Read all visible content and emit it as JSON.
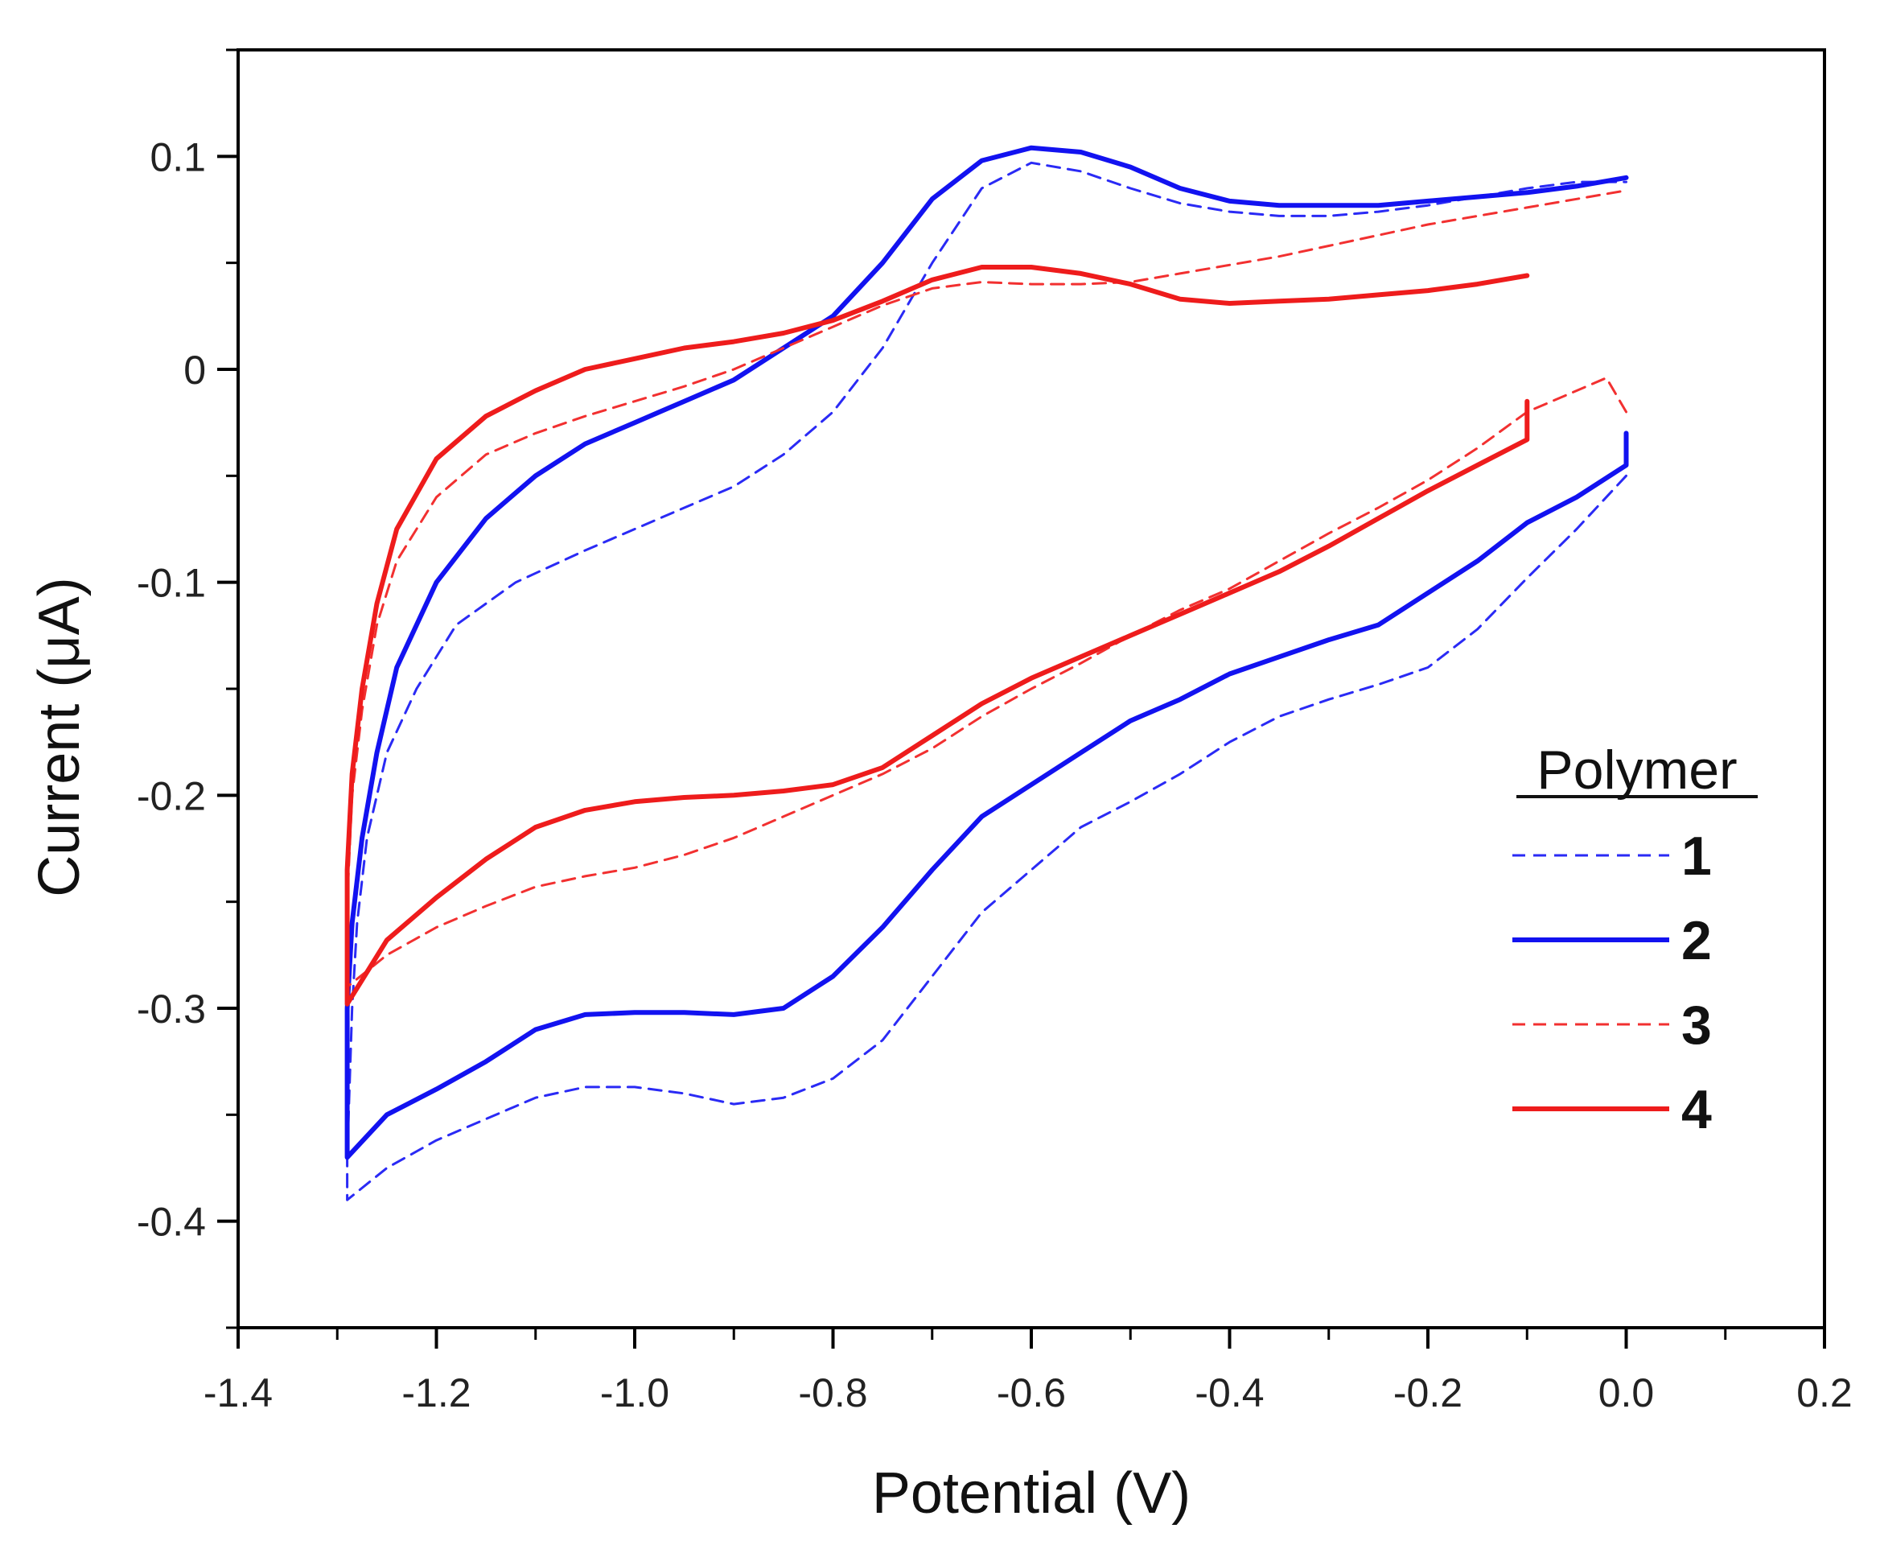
{
  "chart_data": {
    "type": "line",
    "title": "",
    "xlabel": "Potential (V)",
    "ylabel": "Current (μA)",
    "xlim": [
      -1.4,
      0.2
    ],
    "ylim": [
      -0.45,
      0.15
    ],
    "xticks": [
      {
        "value": -1.4,
        "label": "-1.4"
      },
      {
        "value": -1.2,
        "label": "-1.2"
      },
      {
        "value": -1.0,
        "label": "-1.0"
      },
      {
        "value": -0.8,
        "label": "-0.8"
      },
      {
        "value": -0.6,
        "label": "-0.6"
      },
      {
        "value": -0.4,
        "label": "-0.4"
      },
      {
        "value": -0.2,
        "label": "-0.2"
      },
      {
        "value": 0.0,
        "label": "0.0"
      },
      {
        "value": 0.2,
        "label": "0.2"
      }
    ],
    "yticks": [
      {
        "value": 0.1,
        "label": "0.1"
      },
      {
        "value": 0.0,
        "label": "0"
      },
      {
        "value": -0.1,
        "label": "-0.1"
      },
      {
        "value": -0.2,
        "label": "-0.2"
      },
      {
        "value": -0.3,
        "label": "-0.3"
      },
      {
        "value": -0.4,
        "label": "-0.4"
      }
    ],
    "legend": {
      "title": "Polymer",
      "position": "right"
    },
    "series": [
      {
        "name": "1",
        "color": "#2a2af5",
        "style": "dashed",
        "points": [
          [
            0.0,
            -0.05
          ],
          [
            -0.05,
            -0.075
          ],
          [
            -0.1,
            -0.098
          ],
          [
            -0.15,
            -0.122
          ],
          [
            -0.2,
            -0.14
          ],
          [
            -0.25,
            -0.148
          ],
          [
            -0.3,
            -0.155
          ],
          [
            -0.35,
            -0.163
          ],
          [
            -0.4,
            -0.175
          ],
          [
            -0.45,
            -0.19
          ],
          [
            -0.5,
            -0.203
          ],
          [
            -0.55,
            -0.215
          ],
          [
            -0.6,
            -0.235
          ],
          [
            -0.65,
            -0.255
          ],
          [
            -0.7,
            -0.285
          ],
          [
            -0.75,
            -0.315
          ],
          [
            -0.8,
            -0.333
          ],
          [
            -0.85,
            -0.342
          ],
          [
            -0.9,
            -0.345
          ],
          [
            -0.95,
            -0.34
          ],
          [
            -1.0,
            -0.337
          ],
          [
            -1.05,
            -0.337
          ],
          [
            -1.1,
            -0.342
          ],
          [
            -1.15,
            -0.352
          ],
          [
            -1.2,
            -0.362
          ],
          [
            -1.25,
            -0.375
          ],
          [
            -1.29,
            -0.39
          ],
          [
            -1.29,
            -0.37
          ],
          [
            -1.285,
            -0.3
          ],
          [
            -1.28,
            -0.26
          ],
          [
            -1.27,
            -0.22
          ],
          [
            -1.25,
            -0.18
          ],
          [
            -1.22,
            -0.15
          ],
          [
            -1.18,
            -0.12
          ],
          [
            -1.12,
            -0.1
          ],
          [
            -1.05,
            -0.085
          ],
          [
            -1.0,
            -0.075
          ],
          [
            -0.95,
            -0.065
          ],
          [
            -0.9,
            -0.055
          ],
          [
            -0.85,
            -0.04
          ],
          [
            -0.8,
            -0.02
          ],
          [
            -0.75,
            0.01
          ],
          [
            -0.7,
            0.05
          ],
          [
            -0.65,
            0.085
          ],
          [
            -0.6,
            0.097
          ],
          [
            -0.55,
            0.093
          ],
          [
            -0.5,
            0.085
          ],
          [
            -0.45,
            0.078
          ],
          [
            -0.4,
            0.074
          ],
          [
            -0.35,
            0.072
          ],
          [
            -0.3,
            0.072
          ],
          [
            -0.25,
            0.074
          ],
          [
            -0.2,
            0.077
          ],
          [
            -0.15,
            0.081
          ],
          [
            -0.1,
            0.085
          ],
          [
            -0.05,
            0.088
          ],
          [
            0.0,
            0.088
          ]
        ]
      },
      {
        "name": "2",
        "color": "#1212f0",
        "style": "solid",
        "points": [
          [
            0.0,
            -0.03
          ],
          [
            0.0,
            -0.045
          ],
          [
            -0.05,
            -0.06
          ],
          [
            -0.1,
            -0.072
          ],
          [
            -0.15,
            -0.09
          ],
          [
            -0.2,
            -0.105
          ],
          [
            -0.25,
            -0.12
          ],
          [
            -0.3,
            -0.127
          ],
          [
            -0.35,
            -0.135
          ],
          [
            -0.4,
            -0.143
          ],
          [
            -0.45,
            -0.155
          ],
          [
            -0.5,
            -0.165
          ],
          [
            -0.55,
            -0.18
          ],
          [
            -0.6,
            -0.195
          ],
          [
            -0.65,
            -0.21
          ],
          [
            -0.7,
            -0.235
          ],
          [
            -0.75,
            -0.262
          ],
          [
            -0.8,
            -0.285
          ],
          [
            -0.85,
            -0.3
          ],
          [
            -0.9,
            -0.303
          ],
          [
            -0.95,
            -0.302
          ],
          [
            -1.0,
            -0.302
          ],
          [
            -1.05,
            -0.303
          ],
          [
            -1.1,
            -0.31
          ],
          [
            -1.15,
            -0.325
          ],
          [
            -1.2,
            -0.338
          ],
          [
            -1.25,
            -0.35
          ],
          [
            -1.29,
            -0.37
          ],
          [
            -1.29,
            -0.3
          ],
          [
            -1.285,
            -0.26
          ],
          [
            -1.275,
            -0.22
          ],
          [
            -1.26,
            -0.18
          ],
          [
            -1.24,
            -0.14
          ],
          [
            -1.2,
            -0.1
          ],
          [
            -1.15,
            -0.07
          ],
          [
            -1.1,
            -0.05
          ],
          [
            -1.05,
            -0.035
          ],
          [
            -1.0,
            -0.025
          ],
          [
            -0.95,
            -0.015
          ],
          [
            -0.9,
            -0.005
          ],
          [
            -0.85,
            0.01
          ],
          [
            -0.8,
            0.025
          ],
          [
            -0.75,
            0.05
          ],
          [
            -0.7,
            0.08
          ],
          [
            -0.65,
            0.098
          ],
          [
            -0.6,
            0.104
          ],
          [
            -0.55,
            0.102
          ],
          [
            -0.5,
            0.095
          ],
          [
            -0.45,
            0.085
          ],
          [
            -0.4,
            0.079
          ],
          [
            -0.35,
            0.077
          ],
          [
            -0.3,
            0.077
          ],
          [
            -0.25,
            0.077
          ],
          [
            -0.2,
            0.079
          ],
          [
            -0.15,
            0.081
          ],
          [
            -0.1,
            0.083
          ],
          [
            -0.05,
            0.086
          ],
          [
            0.0,
            0.09
          ]
        ]
      },
      {
        "name": "3",
        "color": "#f23030",
        "style": "dashed",
        "points": [
          [
            0.0,
            -0.02
          ],
          [
            -0.02,
            -0.004
          ],
          [
            -0.05,
            -0.01
          ],
          [
            -0.1,
            -0.02
          ],
          [
            -0.15,
            -0.037
          ],
          [
            -0.2,
            -0.052
          ],
          [
            -0.25,
            -0.065
          ],
          [
            -0.3,
            -0.077
          ],
          [
            -0.35,
            -0.09
          ],
          [
            -0.4,
            -0.103
          ],
          [
            -0.45,
            -0.113
          ],
          [
            -0.5,
            -0.125
          ],
          [
            -0.55,
            -0.138
          ],
          [
            -0.6,
            -0.15
          ],
          [
            -0.65,
            -0.163
          ],
          [
            -0.7,
            -0.178
          ],
          [
            -0.75,
            -0.19
          ],
          [
            -0.8,
            -0.2
          ],
          [
            -0.85,
            -0.21
          ],
          [
            -0.9,
            -0.22
          ],
          [
            -0.95,
            -0.228
          ],
          [
            -1.0,
            -0.234
          ],
          [
            -1.05,
            -0.238
          ],
          [
            -1.1,
            -0.243
          ],
          [
            -1.15,
            -0.252
          ],
          [
            -1.2,
            -0.262
          ],
          [
            -1.25,
            -0.275
          ],
          [
            -1.29,
            -0.29
          ],
          [
            -1.29,
            -0.25
          ],
          [
            -1.285,
            -0.2
          ],
          [
            -1.275,
            -0.16
          ],
          [
            -1.26,
            -0.12
          ],
          [
            -1.24,
            -0.09
          ],
          [
            -1.2,
            -0.06
          ],
          [
            -1.15,
            -0.04
          ],
          [
            -1.1,
            -0.03
          ],
          [
            -1.05,
            -0.022
          ],
          [
            -1.0,
            -0.015
          ],
          [
            -0.95,
            -0.008
          ],
          [
            -0.9,
            0.0
          ],
          [
            -0.85,
            0.01
          ],
          [
            -0.8,
            0.02
          ],
          [
            -0.75,
            0.03
          ],
          [
            -0.7,
            0.038
          ],
          [
            -0.65,
            0.041
          ],
          [
            -0.6,
            0.04
          ],
          [
            -0.55,
            0.04
          ],
          [
            -0.5,
            0.041
          ],
          [
            -0.45,
            0.045
          ],
          [
            -0.4,
            0.049
          ],
          [
            -0.35,
            0.053
          ],
          [
            -0.3,
            0.058
          ],
          [
            -0.25,
            0.063
          ],
          [
            -0.2,
            0.068
          ],
          [
            -0.15,
            0.072
          ],
          [
            -0.1,
            0.076
          ],
          [
            -0.05,
            0.08
          ],
          [
            0.0,
            0.084
          ]
        ]
      },
      {
        "name": "4",
        "color": "#ee1c1c",
        "style": "solid",
        "points": [
          [
            -0.1,
            -0.015
          ],
          [
            -0.1,
            -0.033
          ],
          [
            -0.15,
            -0.045
          ],
          [
            -0.2,
            -0.057
          ],
          [
            -0.25,
            -0.07
          ],
          [
            -0.3,
            -0.083
          ],
          [
            -0.35,
            -0.095
          ],
          [
            -0.4,
            -0.105
          ],
          [
            -0.45,
            -0.115
          ],
          [
            -0.5,
            -0.125
          ],
          [
            -0.55,
            -0.135
          ],
          [
            -0.6,
            -0.145
          ],
          [
            -0.65,
            -0.157
          ],
          [
            -0.7,
            -0.172
          ],
          [
            -0.75,
            -0.187
          ],
          [
            -0.8,
            -0.195
          ],
          [
            -0.85,
            -0.198
          ],
          [
            -0.9,
            -0.2
          ],
          [
            -0.95,
            -0.201
          ],
          [
            -1.0,
            -0.203
          ],
          [
            -1.05,
            -0.207
          ],
          [
            -1.1,
            -0.215
          ],
          [
            -1.15,
            -0.23
          ],
          [
            -1.2,
            -0.248
          ],
          [
            -1.25,
            -0.268
          ],
          [
            -1.29,
            -0.298
          ],
          [
            -1.29,
            -0.235
          ],
          [
            -1.285,
            -0.19
          ],
          [
            -1.275,
            -0.15
          ],
          [
            -1.26,
            -0.11
          ],
          [
            -1.24,
            -0.075
          ],
          [
            -1.2,
            -0.042
          ],
          [
            -1.15,
            -0.022
          ],
          [
            -1.1,
            -0.01
          ],
          [
            -1.05,
            0.0
          ],
          [
            -1.0,
            0.005
          ],
          [
            -0.95,
            0.01
          ],
          [
            -0.9,
            0.013
          ],
          [
            -0.85,
            0.017
          ],
          [
            -0.8,
            0.023
          ],
          [
            -0.75,
            0.032
          ],
          [
            -0.7,
            0.042
          ],
          [
            -0.65,
            0.048
          ],
          [
            -0.6,
            0.048
          ],
          [
            -0.55,
            0.045
          ],
          [
            -0.5,
            0.04
          ],
          [
            -0.45,
            0.033
          ],
          [
            -0.4,
            0.031
          ],
          [
            -0.35,
            0.032
          ],
          [
            -0.3,
            0.033
          ],
          [
            -0.25,
            0.035
          ],
          [
            -0.2,
            0.037
          ],
          [
            -0.15,
            0.04
          ],
          [
            -0.1,
            0.044
          ]
        ]
      }
    ]
  }
}
